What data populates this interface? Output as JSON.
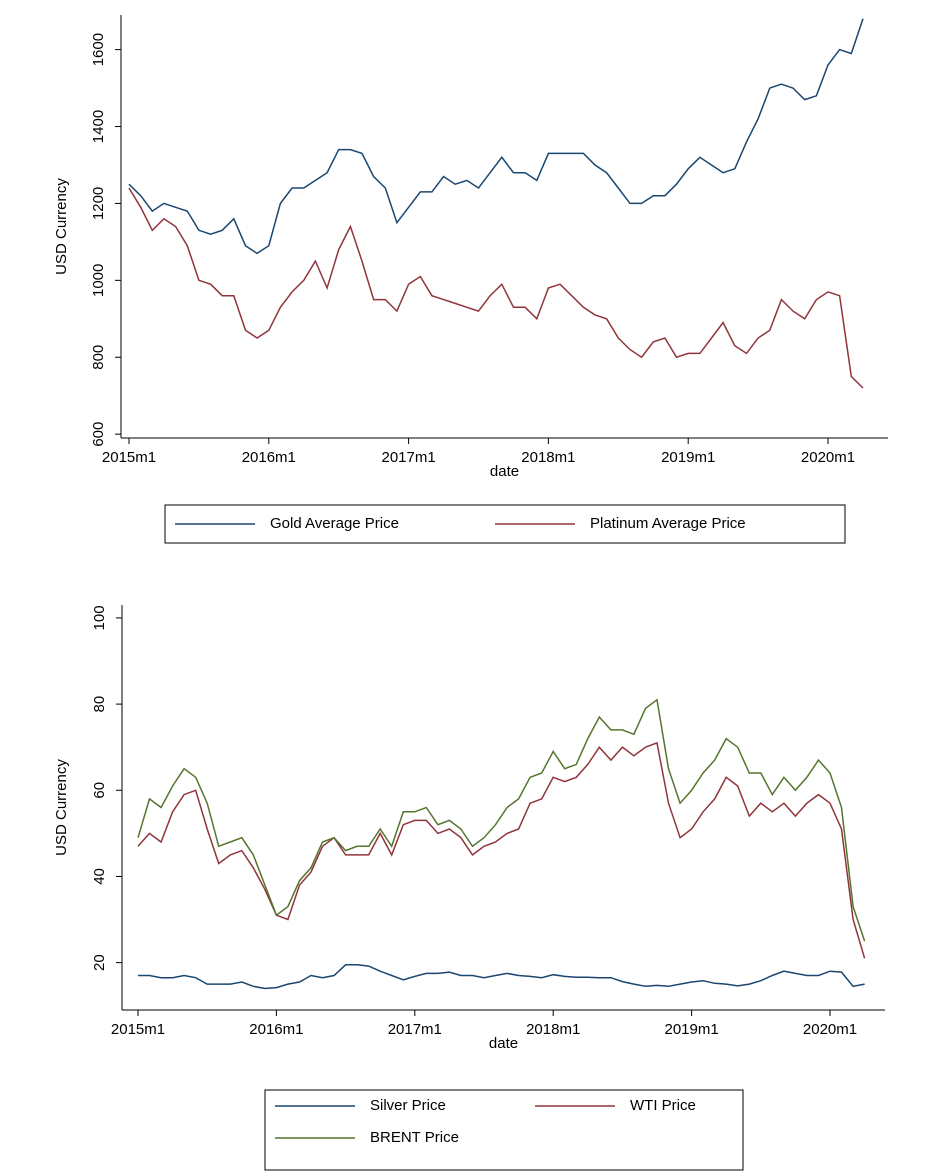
{
  "chart_data": [
    {
      "type": "line",
      "y_label": "USD Currency",
      "x_label": "date",
      "x": [
        "2015m1",
        "2015m2",
        "2015m3",
        "2015m4",
        "2015m5",
        "2015m6",
        "2015m7",
        "2015m8",
        "2015m9",
        "2015m10",
        "2015m11",
        "2015m12",
        "2016m1",
        "2016m2",
        "2016m3",
        "2016m4",
        "2016m5",
        "2016m6",
        "2016m7",
        "2016m8",
        "2016m9",
        "2016m10",
        "2016m11",
        "2016m12",
        "2017m1",
        "2017m2",
        "2017m3",
        "2017m4",
        "2017m5",
        "2017m6",
        "2017m7",
        "2017m8",
        "2017m9",
        "2017m10",
        "2017m11",
        "2017m12",
        "2018m1",
        "2018m2",
        "2018m3",
        "2018m4",
        "2018m5",
        "2018m6",
        "2018m7",
        "2018m8",
        "2018m9",
        "2018m10",
        "2018m11",
        "2018m12",
        "2019m1",
        "2019m2",
        "2019m3",
        "2019m4",
        "2019m5",
        "2019m6",
        "2019m7",
        "2019m8",
        "2019m9",
        "2019m10",
        "2019m11",
        "2019m12",
        "2020m1",
        "2020m2",
        "2020m3",
        "2020m4"
      ],
      "xticks": [
        "2015m1",
        "2016m1",
        "2017m1",
        "2018m1",
        "2019m1",
        "2020m1"
      ],
      "ylim": [
        590,
        1690
      ],
      "yticks": [
        600,
        800,
        1000,
        1200,
        1400,
        1600
      ],
      "series": [
        {
          "name": "Gold Average Price",
          "color": "#1a476f",
          "values": [
            1250,
            1220,
            1180,
            1200,
            1190,
            1180,
            1130,
            1120,
            1130,
            1160,
            1090,
            1070,
            1090,
            1200,
            1240,
            1240,
            1260,
            1280,
            1340,
            1340,
            1330,
            1270,
            1240,
            1150,
            1190,
            1230,
            1230,
            1270,
            1250,
            1260,
            1240,
            1280,
            1320,
            1280,
            1280,
            1260,
            1330,
            1330,
            1330,
            1330,
            1300,
            1280,
            1240,
            1200,
            1200,
            1220,
            1220,
            1250,
            1290,
            1320,
            1300,
            1280,
            1290,
            1360,
            1420,
            1500,
            1510,
            1500,
            1470,
            1480,
            1560,
            1600,
            1590,
            1680
          ]
        },
        {
          "name": "Platinum Average Price",
          "color": "#90353b",
          "values": [
            1240,
            1190,
            1130,
            1160,
            1140,
            1090,
            1000,
            990,
            960,
            960,
            870,
            850,
            870,
            930,
            970,
            1000,
            1050,
            980,
            1080,
            1140,
            1050,
            950,
            950,
            920,
            990,
            1010,
            960,
            950,
            940,
            930,
            920,
            960,
            990,
            930,
            930,
            900,
            980,
            990,
            960,
            930,
            910,
            900,
            850,
            820,
            800,
            840,
            850,
            800,
            810,
            810,
            850,
            890,
            830,
            810,
            850,
            870,
            950,
            920,
            900,
            950,
            970,
            960,
            750,
            720
          ]
        }
      ]
    },
    {
      "type": "line",
      "y_label": "USD Currency",
      "x_label": "date",
      "x": [
        "2015m1",
        "2015m2",
        "2015m3",
        "2015m4",
        "2015m5",
        "2015m6",
        "2015m7",
        "2015m8",
        "2015m9",
        "2015m10",
        "2015m11",
        "2015m12",
        "2016m1",
        "2016m2",
        "2016m3",
        "2016m4",
        "2016m5",
        "2016m6",
        "2016m7",
        "2016m8",
        "2016m9",
        "2016m10",
        "2016m11",
        "2016m12",
        "2017m1",
        "2017m2",
        "2017m3",
        "2017m4",
        "2017m5",
        "2017m6",
        "2017m7",
        "2017m8",
        "2017m9",
        "2017m10",
        "2017m11",
        "2017m12",
        "2018m1",
        "2018m2",
        "2018m3",
        "2018m4",
        "2018m5",
        "2018m6",
        "2018m7",
        "2018m8",
        "2018m9",
        "2018m10",
        "2018m11",
        "2018m12",
        "2019m1",
        "2019m2",
        "2019m3",
        "2019m4",
        "2019m5",
        "2019m6",
        "2019m7",
        "2019m8",
        "2019m9",
        "2019m10",
        "2019m11",
        "2019m12",
        "2020m1",
        "2020m2",
        "2020m3",
        "2020m4"
      ],
      "xticks": [
        "2015m1",
        "2016m1",
        "2017m1",
        "2018m1",
        "2019m1",
        "2020m1"
      ],
      "ylim": [
        9,
        103
      ],
      "yticks": [
        20,
        40,
        60,
        80,
        100
      ],
      "series": [
        {
          "name": "Silver Price",
          "color": "#1a476f",
          "values": [
            17,
            17,
            16.5,
            16.5,
            17,
            16.5,
            15,
            15,
            15,
            15.5,
            14.5,
            14,
            14.2,
            15,
            15.5,
            17,
            16.5,
            17,
            19.5,
            19.5,
            19.2,
            18,
            17,
            16,
            16.8,
            17.5,
            17.5,
            17.8,
            17,
            17,
            16.5,
            17,
            17.5,
            17,
            16.8,
            16.5,
            17.2,
            16.8,
            16.6,
            16.6,
            16.5,
            16.5,
            15.6,
            15,
            14.5,
            14.7,
            14.5,
            15,
            15.5,
            15.8,
            15.2,
            15,
            14.6,
            15,
            15.8,
            17,
            18,
            17.5,
            17,
            17,
            18,
            17.8,
            14.5,
            15
          ]
        },
        {
          "name": "WTI Price",
          "color": "#90353b",
          "values": [
            47,
            50,
            48,
            55,
            59,
            60,
            51,
            43,
            45,
            46,
            42,
            37,
            31,
            30,
            38,
            41,
            47,
            49,
            45,
            45,
            45,
            50,
            45,
            52,
            53,
            53,
            50,
            51,
            49,
            45,
            47,
            48,
            50,
            51,
            57,
            58,
            63,
            62,
            63,
            66,
            70,
            67,
            70,
            68,
            70,
            71,
            57,
            49,
            51,
            55,
            58,
            63,
            61,
            54,
            57,
            55,
            57,
            54,
            57,
            59,
            57,
            51,
            30,
            21
          ]
        },
        {
          "name": "BRENT Price",
          "color": "#55752f",
          "values": [
            49,
            58,
            56,
            61,
            65,
            63,
            57,
            47,
            48,
            49,
            45,
            38,
            31,
            33,
            39,
            42,
            48,
            49,
            46,
            47,
            47,
            51,
            47,
            55,
            55,
            56,
            52,
            53,
            51,
            47,
            49,
            52,
            56,
            58,
            63,
            64,
            69,
            65,
            66,
            72,
            77,
            74,
            74,
            73,
            79,
            81,
            65,
            57,
            60,
            64,
            67,
            72,
            70,
            64,
            64,
            59,
            63,
            60,
            63,
            67,
            64,
            56,
            33,
            25
          ]
        }
      ]
    }
  ]
}
